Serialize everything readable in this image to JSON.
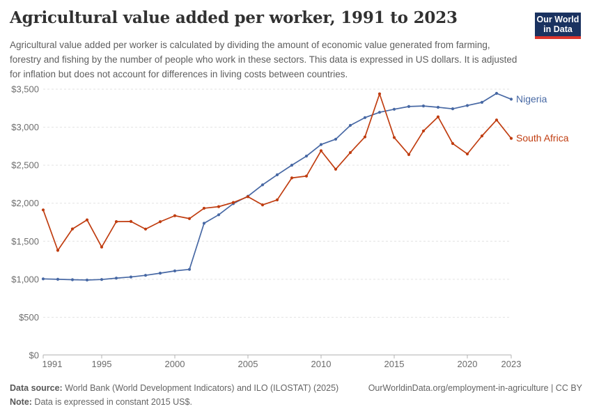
{
  "header": {
    "title": "Agricultural value added per worker, 1991 to 2023",
    "subtitle": "Agricultural value added per worker is calculated by dividing the amount of economic value generated from farming, forestry and fishing by the number of people who work in these sectors. This data is expressed in US dollars. It is adjusted for inflation but does not account for differences in living costs between countries."
  },
  "logo": {
    "line1": "Our World",
    "line2": "in Data",
    "background_color": "#1A3260",
    "accent_color": "#DC352C"
  },
  "chart_data": {
    "type": "line",
    "title": "Agricultural value added per worker, 1991 to 2023",
    "xlabel": "",
    "ylabel": "",
    "ylim": [
      0,
      3500
    ],
    "grid": "horizontal-dashed",
    "legend_position": "right-end-labels",
    "x": [
      1991,
      1992,
      1993,
      1994,
      1995,
      1996,
      1997,
      1998,
      1999,
      2000,
      2001,
      2002,
      2003,
      2004,
      2005,
      2006,
      2007,
      2008,
      2009,
      2010,
      2011,
      2012,
      2013,
      2014,
      2015,
      2016,
      2017,
      2018,
      2019,
      2020,
      2021,
      2022,
      2023
    ],
    "series": [
      {
        "name": "Nigeria",
        "color": "#4768A4",
        "values": [
          1005,
          1000,
          994,
          990,
          997,
          1015,
          1030,
          1052,
          1080,
          1110,
          1130,
          1736,
          1848,
          1995,
          2092,
          2242,
          2374,
          2500,
          2620,
          2772,
          2842,
          3024,
          3126,
          3196,
          3236,
          3272,
          3279,
          3262,
          3242,
          3285,
          3327,
          3445,
          3368
        ]
      },
      {
        "name": "South Africa",
        "color": "#C03D10",
        "values": [
          1912,
          1380,
          1662,
          1781,
          1424,
          1758,
          1760,
          1660,
          1757,
          1836,
          1798,
          1934,
          1955,
          2010,
          2086,
          1978,
          2044,
          2333,
          2357,
          2690,
          2447,
          2666,
          2872,
          3438,
          2864,
          2640,
          2950,
          3136,
          2785,
          2648,
          2885,
          3095,
          2853
        ]
      }
    ],
    "y_axis_ticks": [
      {
        "value": 0,
        "label": "$0"
      },
      {
        "value": 500,
        "label": "$500"
      },
      {
        "value": 1000,
        "label": "$1,000"
      },
      {
        "value": 1500,
        "label": "$1,500"
      },
      {
        "value": 2000,
        "label": "$2,000"
      },
      {
        "value": 2500,
        "label": "$2,500"
      },
      {
        "value": 3000,
        "label": "$3,000"
      },
      {
        "value": 3500,
        "label": "$3,500"
      }
    ],
    "x_axis_ticks": [
      {
        "value": 1991,
        "label": "1991"
      },
      {
        "value": 1995,
        "label": "1995"
      },
      {
        "value": 2000,
        "label": "2000"
      },
      {
        "value": 2005,
        "label": "2005"
      },
      {
        "value": 2010,
        "label": "2010"
      },
      {
        "value": 2015,
        "label": "2015"
      },
      {
        "value": 2020,
        "label": "2020"
      },
      {
        "value": 2023,
        "label": "2023"
      }
    ]
  },
  "footer": {
    "source_label": "Data source:",
    "source_text": " World Bank (World Development Indicators) and ILO (ILOSTAT) (2025)",
    "link_text": "OurWorldinData.org/employment-in-agriculture | CC BY",
    "note_label": "Note:",
    "note_text": " Data is expressed in constant 2015 US$."
  }
}
